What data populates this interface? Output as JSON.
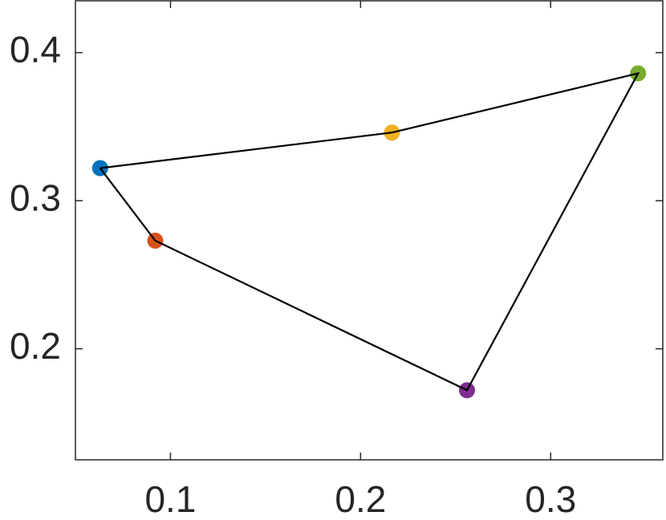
{
  "chart_data": {
    "type": "scatter",
    "series": [
      {
        "color": "#0072bd",
        "x": [
          0.063
        ],
        "values": [
          0.322
        ]
      },
      {
        "color": "#d95319",
        "x": [
          0.092
        ],
        "values": [
          0.273
        ]
      },
      {
        "color": "#7e2f8e",
        "x": [
          0.256
        ],
        "values": [
          0.172
        ]
      },
      {
        "color": "#77ac30",
        "x": [
          0.346
        ],
        "values": [
          0.386
        ]
      },
      {
        "color": "#edb120",
        "x": [
          0.2165
        ],
        "values": [
          0.346
        ]
      },
      {
        "color": "#000000",
        "mode": "line",
        "x": [
          0.063,
          0.092,
          0.256,
          0.346,
          0.2165,
          0.063
        ],
        "values": [
          0.322,
          0.273,
          0.172,
          0.386,
          0.346,
          0.322
        ]
      }
    ],
    "xlim": [
      0.05,
      0.359
    ],
    "xticks": [
      0.1,
      0.2,
      0.3
    ],
    "ylim": [
      0.125,
      0.435
    ],
    "yticks": [
      0.2,
      0.3,
      0.4
    ],
    "grid": false
  }
}
